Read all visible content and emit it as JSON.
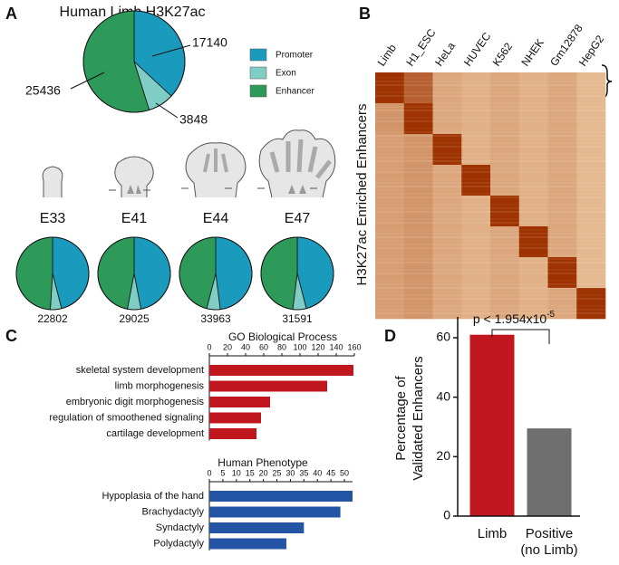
{
  "panels": [
    "A",
    "B",
    "C",
    "D"
  ],
  "chart_data": [
    {
      "type": "pie",
      "title": "Human Limb H3K27ac",
      "categories": [
        "Promoter",
        "Exon",
        "Enhancer"
      ],
      "values": [
        17140,
        3848,
        25436
      ],
      "colors": [
        "#1a9bbd",
        "#7fcdc4",
        "#2e9a5a"
      ],
      "legend": "right"
    },
    {
      "type": "pie",
      "title": "E33",
      "values": [
        10490,
        1140,
        11172
      ],
      "total": 22802,
      "colors": [
        "#1a9bbd",
        "#7fcdc4",
        "#2e9a5a"
      ]
    },
    {
      "type": "pie",
      "title": "E41",
      "values": [
        13640,
        1740,
        13645
      ],
      "total": 29025,
      "colors": [
        "#1a9bbd",
        "#7fcdc4",
        "#2e9a5a"
      ]
    },
    {
      "type": "pie",
      "title": "E44",
      "values": [
        16300,
        2040,
        15623
      ],
      "total": 33963,
      "colors": [
        "#1a9bbd",
        "#7fcdc4",
        "#2e9a5a"
      ]
    },
    {
      "type": "pie",
      "title": "E47",
      "values": [
        14530,
        1900,
        15161
      ],
      "total": 31591,
      "colors": [
        "#1a9bbd",
        "#7fcdc4",
        "#2e9a5a"
      ]
    },
    {
      "type": "heatmap",
      "y_label": "H3K27ac Enriched Enhancers",
      "columns": [
        "Limb",
        "H1_ESC",
        "HeLa",
        "HUVEC",
        "K562",
        "NHEK",
        "Gm12878",
        "HepG2"
      ],
      "values": [
        [
          1.0,
          0.75,
          0.35,
          0.3,
          0.35,
          0.3,
          0.35,
          0.25
        ],
        [
          0.45,
          1.0,
          0.35,
          0.3,
          0.35,
          0.3,
          0.35,
          0.25
        ],
        [
          0.4,
          0.45,
          1.0,
          0.3,
          0.35,
          0.3,
          0.35,
          0.25
        ],
        [
          0.4,
          0.45,
          0.35,
          1.0,
          0.35,
          0.3,
          0.35,
          0.25
        ],
        [
          0.4,
          0.45,
          0.35,
          0.3,
          1.0,
          0.3,
          0.35,
          0.25
        ],
        [
          0.4,
          0.45,
          0.35,
          0.3,
          0.35,
          1.0,
          0.35,
          0.25
        ],
        [
          0.4,
          0.45,
          0.35,
          0.3,
          0.35,
          0.3,
          1.0,
          0.25
        ],
        [
          0.4,
          0.45,
          0.35,
          0.3,
          0.35,
          0.3,
          0.35,
          1.0
        ]
      ],
      "low_color": "#fde6c0",
      "high_color": "#9e3200"
    },
    {
      "type": "hbar",
      "title": "GO Biological Process",
      "categories": [
        "skeletal system development",
        "limb morphogenesis",
        "embryonic digit morphogenesis",
        "regulation of smoothened signaling",
        "cartilage development"
      ],
      "values": [
        159,
        130,
        67,
        57,
        52
      ],
      "color": "#c0171e",
      "xlim": [
        0,
        160
      ],
      "xticks": [
        0,
        20,
        40,
        60,
        80,
        100,
        120,
        140,
        160
      ]
    },
    {
      "type": "hbar",
      "title": "Human Phenotype",
      "categories": [
        "Hypoplasia of the hand",
        "Brachydactyly",
        "Syndactyly",
        "Polydactyly"
      ],
      "values": [
        53,
        48.5,
        35,
        28.5
      ],
      "color": "#2455a4",
      "xlim": [
        0,
        53
      ],
      "xticks": [
        0,
        5,
        10,
        15,
        20,
        25,
        30,
        35,
        40,
        45,
        50
      ]
    },
    {
      "type": "bar",
      "y_label": [
        "Percentage of",
        "Validated Enhancers"
      ],
      "categories": [
        [
          "Limb"
        ],
        [
          "Positive",
          "(no Limb)"
        ]
      ],
      "values": [
        61,
        29.5
      ],
      "colors": [
        "#c0171e",
        "#6e6e6e"
      ],
      "ylim": [
        0,
        67
      ],
      "yticks": [
        0,
        20,
        40,
        60
      ],
      "annotation": {
        "text": "p < 1.954x10",
        "superscript": "-5"
      }
    }
  ]
}
